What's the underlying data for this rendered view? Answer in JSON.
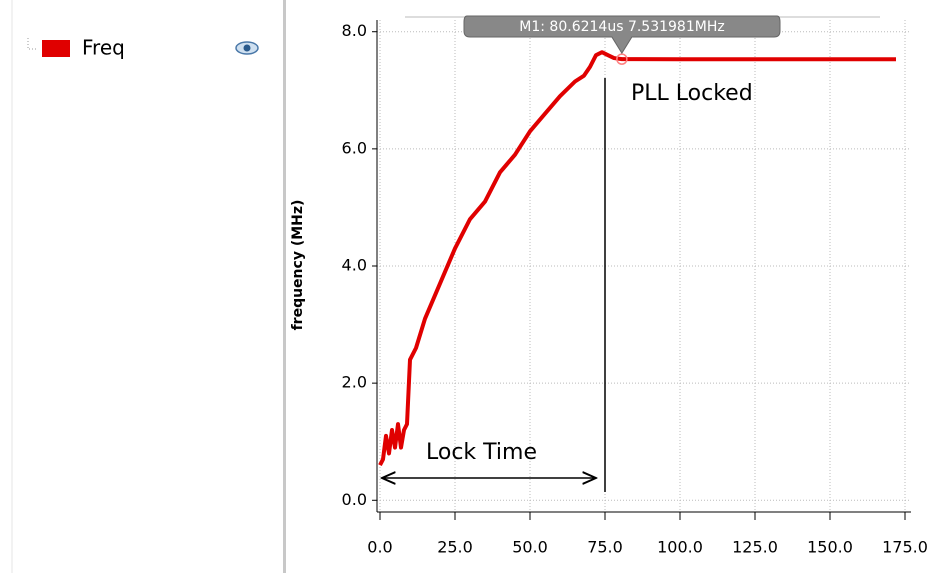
{
  "chart_data": {
    "type": "line",
    "y_label": "frequency (MHz)",
    "x": [
      0,
      1,
      2,
      3,
      4,
      5,
      6,
      7,
      8,
      9,
      10,
      12,
      15,
      20,
      25,
      30,
      35,
      40,
      45,
      50,
      55,
      60,
      65,
      68,
      70,
      72,
      74,
      76,
      78,
      80.6214,
      100,
      172
    ],
    "series": [
      {
        "name": "Freq",
        "color": "#e00000",
        "values": [
          0.6,
          0.7,
          1.1,
          0.8,
          1.2,
          0.9,
          1.3,
          0.9,
          1.2,
          1.3,
          2.4,
          2.6,
          3.1,
          3.7,
          4.3,
          4.8,
          5.1,
          5.6,
          5.9,
          6.3,
          6.6,
          6.9,
          7.15,
          7.25,
          7.4,
          7.6,
          7.65,
          7.6,
          7.55,
          7.531981,
          7.53,
          7.53
        ]
      }
    ],
    "xlim": [
      -1,
      177
    ],
    "ylim": [
      -0.2,
      8.2
    ],
    "xticks": [
      {
        "value": 0,
        "label": "0.0"
      },
      {
        "value": 25,
        "label": "25.0"
      },
      {
        "value": 50,
        "label": "50.0"
      },
      {
        "value": 75,
        "label": "75.0"
      },
      {
        "value": 100,
        "label": "100.0"
      },
      {
        "value": 125,
        "label": "125.0"
      },
      {
        "value": 150,
        "label": "150.0"
      },
      {
        "value": 175,
        "label": "175.0"
      }
    ],
    "yticks": [
      {
        "value": 0,
        "label": "0.0"
      },
      {
        "value": 2,
        "label": "2.0"
      },
      {
        "value": 4,
        "label": "4.0"
      },
      {
        "value": 6,
        "label": "6.0"
      },
      {
        "value": 8,
        "label": "8.0"
      }
    ],
    "grid": true,
    "marker": {
      "label": "M1: 80.6214us 7.531981MHz",
      "x": 80.6214,
      "y": 7.531981
    },
    "annotations": [
      "PLL Locked",
      "Lock Time"
    ]
  }
}
